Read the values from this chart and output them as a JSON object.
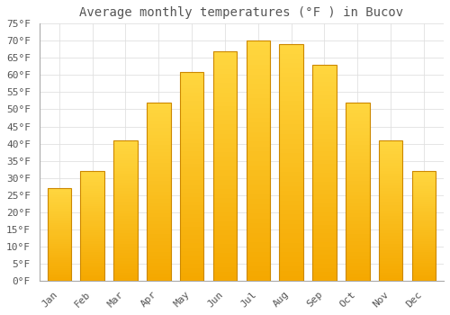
{
  "title": "Average monthly temperatures (°F ) in Bucov",
  "months": [
    "Jan",
    "Feb",
    "Mar",
    "Apr",
    "May",
    "Jun",
    "Jul",
    "Aug",
    "Sep",
    "Oct",
    "Nov",
    "Dec"
  ],
  "values": [
    27,
    32,
    41,
    52,
    61,
    67,
    70,
    69,
    63,
    52,
    41,
    32
  ],
  "bar_color_bottom": "#F5A800",
  "bar_color_top": "#FFD740",
  "bar_edge_color": "#CC8800",
  "background_color": "#FFFFFF",
  "grid_color": "#E0E0E0",
  "text_color": "#555555",
  "ylim": [
    0,
    75
  ],
  "ytick_step": 5,
  "title_fontsize": 10,
  "tick_fontsize": 8,
  "font_family": "monospace"
}
